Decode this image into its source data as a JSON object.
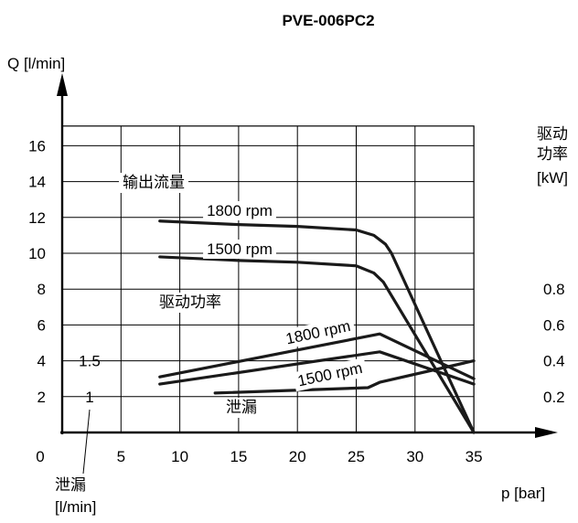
{
  "chart_data": {
    "type": "line",
    "title": "PVE-006PC2",
    "xlabel": "p [bar]",
    "ylabel": "Q [l/min]",
    "right_axis_label": [
      "驱动",
      "功率",
      "[kW]"
    ],
    "leak_axis_label": [
      "泄漏",
      "[l/min]"
    ],
    "xlim": [
      0,
      35
    ],
    "ylim": [
      0,
      16
    ],
    "x_ticks": [
      0,
      5,
      10,
      15,
      20,
      25,
      30,
      35
    ],
    "y_ticks": [
      2,
      4,
      6,
      8,
      10,
      12,
      14,
      16
    ],
    "power_ticks": [
      {
        "label": "0.2",
        "q": 2
      },
      {
        "label": "0.4",
        "q": 4
      },
      {
        "label": "0.6",
        "q": 6
      },
      {
        "label": "0.8",
        "q": 8
      }
    ],
    "leak_ticks": [
      {
        "label": "1",
        "q": 2
      },
      {
        "label": "1.5",
        "q": 4
      }
    ],
    "grid": true,
    "series": [
      {
        "group": "输出流量",
        "name": "1800 rpm",
        "x": [
          8.3,
          15,
          20,
          25,
          26.5,
          27.5,
          28,
          35
        ],
        "y": [
          11.8,
          11.6,
          11.5,
          11.3,
          11.0,
          10.5,
          10.0,
          0
        ]
      },
      {
        "group": "输出流量",
        "name": "1500 rpm",
        "x": [
          8.3,
          15,
          20,
          25,
          26.5,
          27.3,
          35
        ],
        "y": [
          9.8,
          9.6,
          9.5,
          9.3,
          8.9,
          8.4,
          0
        ]
      },
      {
        "group": "驱动功率",
        "name": "1800 rpm",
        "x": [
          8.3,
          27,
          35
        ],
        "y": [
          3.1,
          5.5,
          3.0
        ]
      },
      {
        "group": "驱动功率",
        "name": "1500 rpm",
        "x": [
          8.3,
          27,
          35
        ],
        "y": [
          2.7,
          4.5,
          2.7
        ]
      },
      {
        "group": "泄漏",
        "name": "",
        "x": [
          13,
          26,
          27,
          35
        ],
        "y": [
          2.2,
          2.5,
          2.8,
          4.0
        ]
      }
    ],
    "labels": {
      "flow": "输出流量",
      "power": "驱动功率",
      "leak": "泄漏",
      "rpm1800": "1800 rpm",
      "rpm1500": "1500 rpm"
    }
  }
}
